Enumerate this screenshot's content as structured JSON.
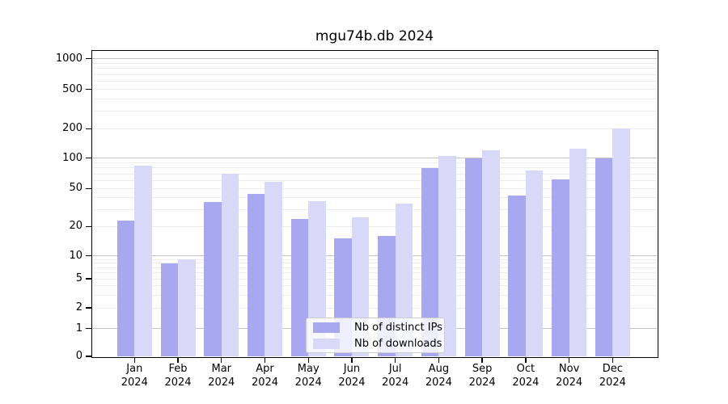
{
  "title": "mgu74b.db 2024",
  "chart_data": {
    "type": "bar",
    "title": "mgu74b.db 2024",
    "categories": [
      "Jan",
      "Feb",
      "Mar",
      "Apr",
      "May",
      "Jun",
      "Jul",
      "Aug",
      "Sep",
      "Oct",
      "Nov",
      "Dec"
    ],
    "x_tick_year": "2024",
    "series": [
      {
        "name": "Nb of distinct IPs",
        "color": "#a8a8f1",
        "values": [
          23,
          8,
          36,
          44,
          24,
          15,
          16,
          80,
          100,
          42,
          62,
          100
        ]
      },
      {
        "name": "Nb of downloads",
        "color": "#d8d8f9",
        "values": [
          85,
          9,
          70,
          58,
          37,
          25,
          35,
          105,
          120,
          75,
          125,
          200
        ]
      }
    ],
    "y_ticks": [
      0,
      1,
      2,
      5,
      10,
      20,
      50,
      100,
      200,
      500,
      1000
    ],
    "y_scale": "log-like (symlog with 0 baseline)",
    "ylim": [
      0,
      1200
    ],
    "grid": true,
    "legend_position": "lower center"
  },
  "colors": {
    "bar_dark": "#a8a8f1",
    "bar_light": "#d8d8f9",
    "grid_major": "#c3c3c3",
    "grid_minor": "#ededed",
    "spine": "#000000"
  }
}
